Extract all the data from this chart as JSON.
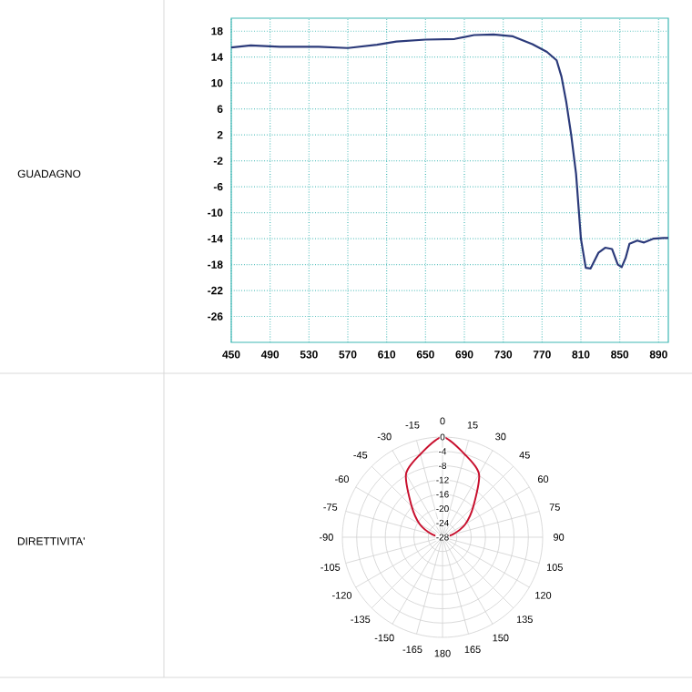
{
  "chart_data": [
    {
      "type": "line",
      "ylabel": "GUADAGNO",
      "xlim": [
        450,
        900
      ],
      "ylim": [
        -30,
        20
      ],
      "xticks": [
        450,
        490,
        530,
        570,
        610,
        650,
        690,
        730,
        770,
        810,
        850,
        890
      ],
      "yticks": [
        18,
        14,
        10,
        6,
        2,
        -2,
        -6,
        -10,
        -14,
        -18,
        -22,
        -26
      ],
      "grid": true,
      "series": [
        {
          "color": "#2b3a7a",
          "x": [
            450,
            470,
            500,
            540,
            570,
            600,
            620,
            650,
            680,
            700,
            720,
            740,
            760,
            775,
            785,
            790,
            795,
            800,
            805,
            808,
            810,
            815,
            820,
            828,
            835,
            842,
            848,
            852,
            856,
            860,
            868,
            875,
            885,
            895,
            900
          ],
          "values": [
            15.5,
            15.8,
            15.6,
            15.6,
            15.4,
            15.9,
            16.4,
            16.7,
            16.8,
            17.4,
            17.5,
            17.2,
            16.0,
            14.8,
            13.5,
            11,
            7,
            2,
            -4,
            -10,
            -14,
            -18.5,
            -18.6,
            -16.2,
            -15.4,
            -15.6,
            -18.0,
            -18.4,
            -17,
            -14.8,
            -14.3,
            -14.6,
            -14,
            -13.9,
            -13.9
          ]
        }
      ]
    },
    {
      "type": "radar",
      "ylabel": "DIRETTIVITA'",
      "categories": [
        "0",
        "15",
        "30",
        "45",
        "60",
        "75",
        "90",
        "105",
        "120",
        "135",
        "150",
        "165",
        "180",
        "-165",
        "-150",
        "-135",
        "-120",
        "-105",
        "-90",
        "-75",
        "-60",
        "-45",
        "-30",
        "-15"
      ],
      "ylim": [
        -28,
        0
      ],
      "yticks": [
        0,
        -4,
        -8,
        -12,
        -16,
        -20,
        -24,
        -28
      ],
      "grid": true,
      "series": [
        {
          "color": "#c8102e",
          "values": [
            0,
            -4,
            -7.6,
            -15.8,
            -20.6,
            -25,
            -28,
            -28,
            -28,
            -28,
            -28,
            -28,
            -28,
            -28,
            -28,
            -28,
            -28,
            -28,
            -28,
            -25,
            -20.6,
            -15.8,
            -7.6,
            -4
          ]
        }
      ]
    }
  ]
}
